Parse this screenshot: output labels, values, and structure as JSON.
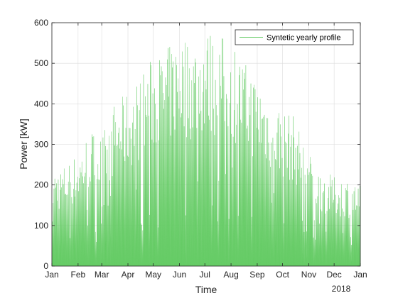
{
  "chart_data": {
    "type": "area",
    "xlabel": "Time",
    "ylabel": "Power [kW]",
    "year_label": "2018",
    "x_tick_labels": [
      "Jan",
      "Feb",
      "Mar",
      "Apr",
      "May",
      "Jun",
      "Jul",
      "Aug",
      "Sep",
      "Oct",
      "Nov",
      "Dec",
      "Jan"
    ],
    "x_tick_dates": [
      "2018-01-01",
      "2018-02-01",
      "2018-03-01",
      "2018-04-01",
      "2018-05-01",
      "2018-06-01",
      "2018-07-01",
      "2018-08-01",
      "2018-09-01",
      "2018-10-01",
      "2018-11-01",
      "2018-12-01",
      "2019-01-01"
    ],
    "xlim": [
      "2018-01-01",
      "2019-01-01"
    ],
    "ylim": [
      0,
      600
    ],
    "y_ticks": [
      0,
      100,
      200,
      300,
      400,
      500,
      600
    ],
    "grid": true,
    "legend_location": "top-right",
    "series": [
      {
        "name": "Syntetic yearly profile",
        "color": "#66cc66",
        "x": [
          "2018-01-01",
          "2018-01-15",
          "2018-02-01",
          "2018-02-15",
          "2018-03-01",
          "2018-03-15",
          "2018-04-01",
          "2018-04-15",
          "2018-05-01",
          "2018-05-15",
          "2018-06-01",
          "2018-06-15",
          "2018-07-01",
          "2018-07-15",
          "2018-08-01",
          "2018-08-15",
          "2018-09-01",
          "2018-09-15",
          "2018-10-01",
          "2018-10-15",
          "2018-11-01",
          "2018-11-15",
          "2018-12-01",
          "2018-12-15",
          "2018-12-31"
        ],
        "daily_peak_envelope_kW": [
          240,
          250,
          280,
          340,
          320,
          400,
          430,
          470,
          520,
          530,
          580,
          560,
          590,
          570,
          570,
          510,
          470,
          430,
          390,
          370,
          280,
          240,
          220,
          220,
          200
        ]
      }
    ]
  }
}
